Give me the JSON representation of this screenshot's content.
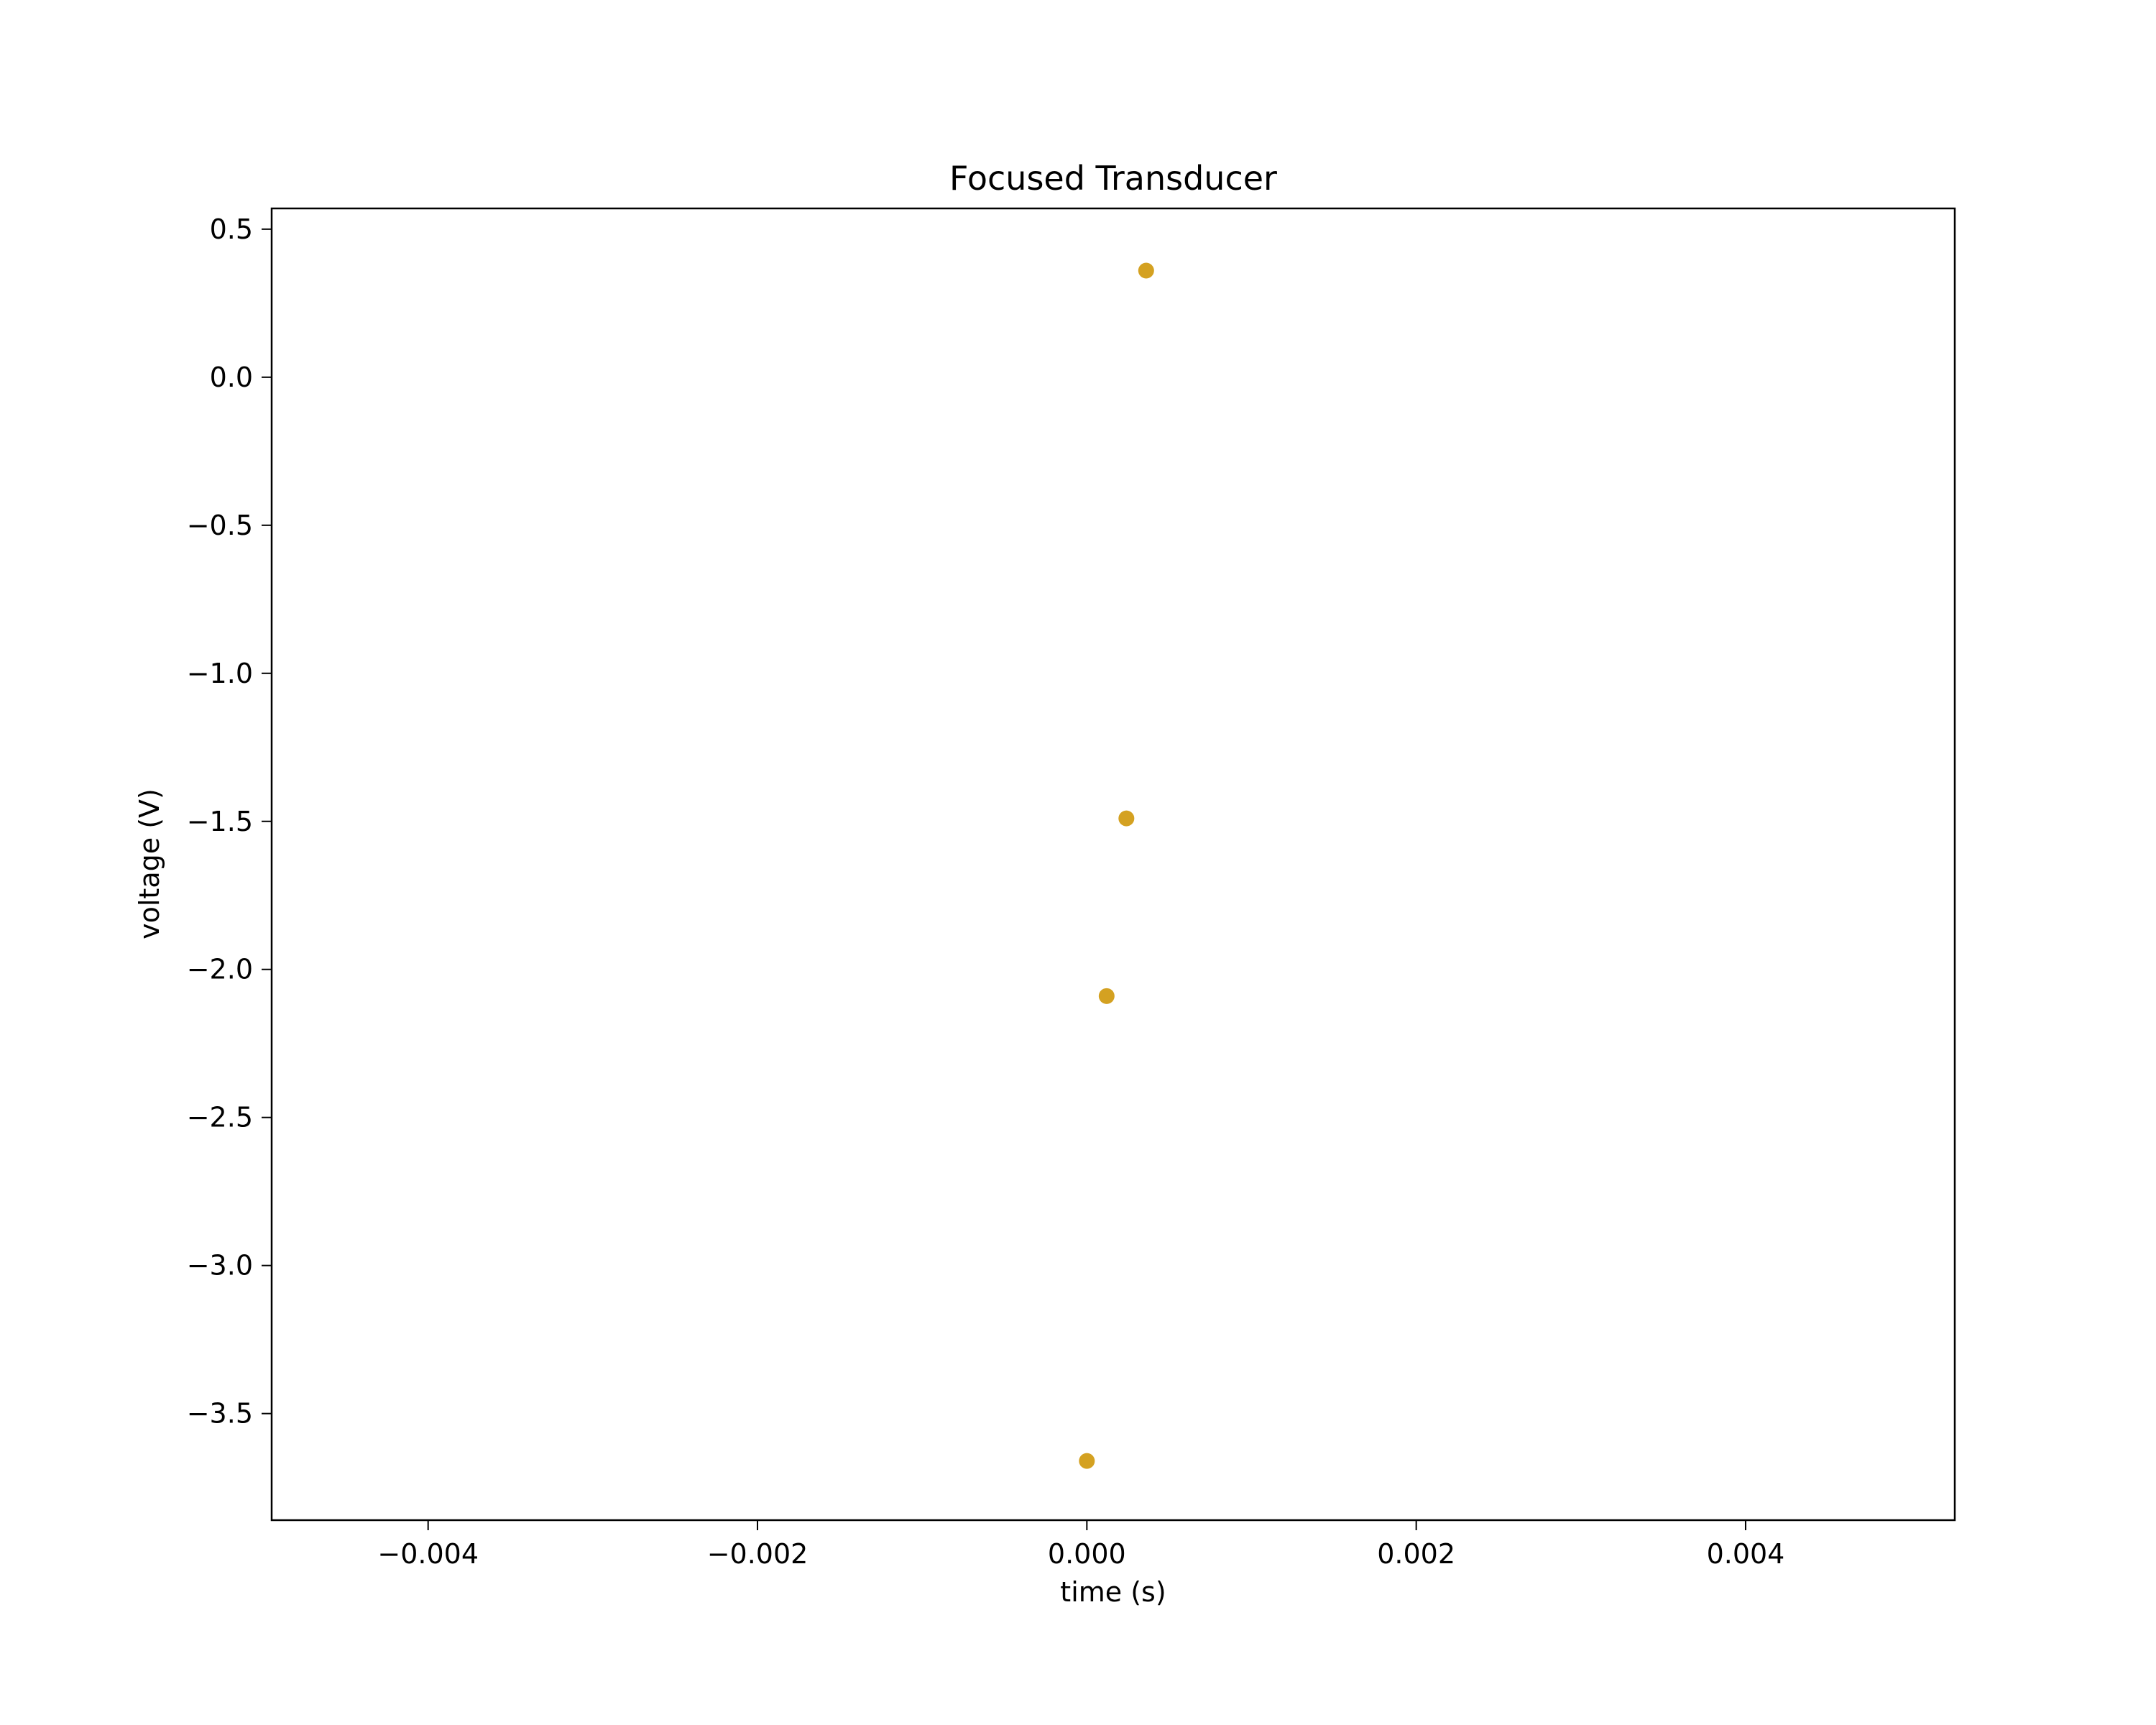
{
  "chart_data": {
    "type": "scatter",
    "title": "Focused Transducer",
    "xlabel": "time (s)",
    "ylabel": "voltage (V)",
    "xlim": [
      -0.00495,
      0.00527
    ],
    "ylim": [
      -3.86,
      0.57
    ],
    "grid": false,
    "legend": "none",
    "x_ticks": [
      -0.004,
      -0.002,
      0.0,
      0.002,
      0.004
    ],
    "x_tick_labels": [
      "−0.004",
      "−0.002",
      "0.000",
      "0.002",
      "0.004"
    ],
    "y_ticks": [
      0.5,
      0.0,
      -0.5,
      -1.0,
      -1.5,
      -2.0,
      -2.5,
      -3.0,
      -3.5
    ],
    "y_tick_labels": [
      "0.5",
      "0.0",
      "−0.5",
      "−1.0",
      "−1.5",
      "−2.0",
      "−2.5",
      "−3.0",
      "−3.5"
    ],
    "series": [
      {
        "color": "#d4a121",
        "x": [
          0.0,
          0.00012,
          0.00024,
          0.00036
        ],
        "y": [
          -3.66,
          -2.09,
          -1.49,
          0.36
        ]
      }
    ]
  }
}
